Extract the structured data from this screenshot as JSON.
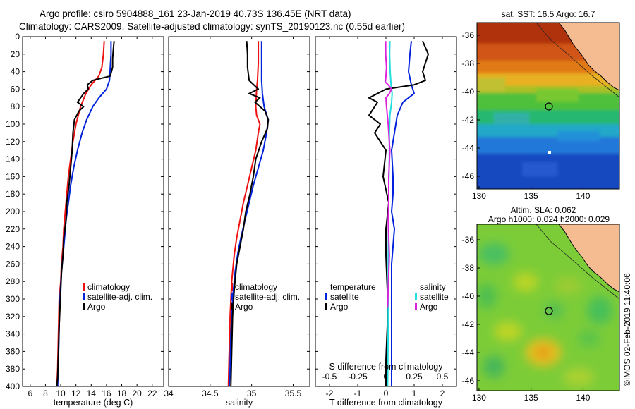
{
  "header": {
    "title_line1": "Argo profile: csiro 5904888_161 23-Jan-2019 40.73S 136.45E (NRT data)",
    "title_line2": "Climatology: CARS2009. Satellite-adjusted climatology: synTS_20190123.nc (0.55d earlier)"
  },
  "colors": {
    "climatology": "#ee1111",
    "satellite": "#0022dd",
    "argo": "#000000",
    "satellite_salinity": "#22dddd",
    "argo_salinity": "#dd22dd"
  },
  "chart_data": [
    {
      "type": "line",
      "name": "temperature",
      "xlabel": "temperature (deg C)",
      "ylabel": "pressure",
      "xlim": [
        5,
        23.5
      ],
      "ylim": [
        0,
        400
      ],
      "xticks": [
        6,
        8,
        10,
        12,
        14,
        16,
        18,
        20,
        22
      ],
      "yticks": [
        0,
        20,
        40,
        60,
        80,
        100,
        120,
        140,
        160,
        180,
        200,
        220,
        240,
        260,
        280,
        300,
        320,
        340,
        360,
        380,
        400
      ],
      "legend": [
        "climatology",
        "satellite-adj. clim.",
        "Argo"
      ],
      "series": [
        {
          "name": "climatology",
          "color": "#ee1111",
          "x": [
            15.7,
            15.6,
            15.4,
            15.0,
            14.0,
            13.3,
            12.6,
            12.0,
            11.6,
            11.3,
            11.0,
            10.8,
            10.6,
            10.4,
            10.3,
            10.1,
            10.0,
            9.8,
            9.7,
            9.6,
            9.5
          ],
          "y": [
            5,
            20,
            35,
            45,
            55,
            65,
            80,
            100,
            120,
            140,
            160,
            180,
            200,
            220,
            240,
            260,
            280,
            300,
            340,
            380,
            400
          ]
        },
        {
          "name": "satellite-adj. clim.",
          "color": "#0022dd",
          "x": [
            16.6,
            16.6,
            16.5,
            16.4,
            16.0,
            15.0,
            14.2,
            13.4,
            12.8,
            12.2,
            11.7,
            11.3,
            11.0,
            10.7,
            10.5,
            10.3,
            10.1,
            9.9,
            9.8,
            9.7,
            9.6
          ],
          "y": [
            5,
            20,
            35,
            50,
            60,
            70,
            80,
            95,
            110,
            130,
            150,
            170,
            190,
            210,
            230,
            250,
            270,
            300,
            330,
            370,
            400
          ]
        },
        {
          "name": "Argo",
          "color": "#000000",
          "x": [
            17.0,
            16.9,
            16.8,
            16.8,
            16.5,
            14.2,
            13.5,
            13.6,
            13.0,
            12.6,
            12.2,
            13.0,
            12.4,
            11.8,
            11.6,
            11.5,
            11.3,
            11.1,
            10.8,
            10.7,
            10.4,
            10.3,
            10.1,
            10.0,
            9.9,
            9.8,
            9.7,
            9.6,
            9.5
          ],
          "y": [
            5,
            15,
            25,
            35,
            45,
            50,
            55,
            60,
            65,
            70,
            75,
            80,
            85,
            95,
            110,
            130,
            150,
            170,
            190,
            210,
            230,
            250,
            270,
            290,
            310,
            330,
            360,
            390,
            400
          ]
        }
      ]
    },
    {
      "type": "line",
      "name": "salinity",
      "xlabel": "salinity",
      "xlim": [
        34,
        35.7
      ],
      "ylim": [
        0,
        400
      ],
      "xticks": [
        34,
        34.5,
        35,
        35.5
      ],
      "legend": [
        "climatology",
        "satellite-adj. clim.",
        "Argo"
      ],
      "series": [
        {
          "name": "climatology",
          "color": "#ee1111",
          "x": [
            35.08,
            35.08,
            35.07,
            35.06,
            35.05,
            35.06,
            35.1,
            35.08,
            35.05,
            35.0,
            34.95,
            34.9,
            34.86,
            34.82,
            34.79,
            34.76,
            34.74,
            34.73,
            34.72
          ],
          "y": [
            5,
            30,
            50,
            60,
            80,
            90,
            100,
            110,
            130,
            150,
            170,
            190,
            210,
            230,
            250,
            280,
            320,
            360,
            400
          ]
        },
        {
          "name": "satellite-adj. clim.",
          "color": "#0022dd",
          "x": [
            35.12,
            35.12,
            35.12,
            35.13,
            35.15,
            35.2,
            35.18,
            35.14,
            35.08,
            35.02,
            34.97,
            34.92,
            34.87,
            34.83,
            34.8,
            34.77,
            34.75,
            34.74,
            34.73
          ],
          "y": [
            5,
            30,
            50,
            65,
            80,
            95,
            110,
            130,
            150,
            170,
            190,
            210,
            230,
            250,
            270,
            300,
            340,
            380,
            400
          ]
        },
        {
          "name": "Argo",
          "color": "#000000",
          "x": [
            34.94,
            34.95,
            34.95,
            34.97,
            35.08,
            34.97,
            35.1,
            35.04,
            35.16,
            35.2,
            35.19,
            35.12,
            35.05,
            35.02,
            34.98,
            34.93,
            34.9,
            34.86,
            34.82,
            34.79,
            34.77,
            34.76,
            34.75
          ],
          "y": [
            5,
            20,
            35,
            50,
            60,
            65,
            70,
            75,
            85,
            95,
            105,
            120,
            140,
            160,
            180,
            200,
            220,
            240,
            260,
            290,
            320,
            360,
            400
          ]
        }
      ]
    },
    {
      "type": "line",
      "name": "difference from climatology",
      "xlabel": "T difference from climatology",
      "xlabel_secondary": "S difference from climatology",
      "xlim": [
        -2.5,
        2.5
      ],
      "ylim": [
        0,
        400
      ],
      "xticks": [
        -2,
        -1,
        0,
        1,
        2
      ],
      "xticks_secondary": [
        "-0.5",
        "-0.25",
        "0",
        "0.25",
        "0.5"
      ],
      "legend_temperature_title": "temperature",
      "legend_salinity_title": "salinity",
      "legend": [
        "satellite",
        "Argo"
      ],
      "series": [
        {
          "name": "temperature satellite",
          "color": "#0022dd",
          "x": [
            0.9,
            0.85,
            0.8,
            0.9,
            1.0,
            0.6,
            0.4,
            0.3,
            0.2,
            0.25,
            0.25,
            0.2,
            0.3,
            0.2,
            0.2,
            0.2,
            0.2
          ],
          "y": [
            5,
            20,
            40,
            55,
            65,
            75,
            90,
            110,
            130,
            160,
            180,
            200,
            220,
            260,
            300,
            350,
            400
          ]
        },
        {
          "name": "temperature Argo",
          "color": "#000000",
          "x": [
            1.3,
            1.5,
            1.3,
            1.4,
            1.0,
            0.0,
            -0.6,
            -0.3,
            -0.4,
            -0.6,
            -0.2,
            -0.4,
            0.0,
            -0.1,
            0.1,
            0.0,
            0.0,
            0.05,
            0.05,
            0.0,
            0.0
          ],
          "y": [
            5,
            20,
            40,
            50,
            55,
            60,
            70,
            75,
            80,
            90,
            100,
            110,
            130,
            160,
            190,
            220,
            250,
            290,
            330,
            370,
            400
          ]
        },
        {
          "name": "salinity satellite",
          "color": "#22dddd",
          "x": [
            0.14,
            0.13,
            0.15,
            0.18,
            0.22,
            0.2,
            0.14,
            0.12,
            0.12,
            0.1,
            0.1,
            0.08,
            0.08,
            0.06
          ],
          "y": [
            5,
            20,
            40,
            55,
            65,
            75,
            90,
            110,
            140,
            170,
            200,
            260,
            330,
            400
          ]
        },
        {
          "name": "salinity Argo",
          "color": "#dd22dd",
          "x": [
            -0.01,
            -0.01,
            0.02,
            0.0,
            -0.02,
            0.08,
            0.2,
            0.12,
            0.0,
            0.02,
            0.08,
            0.14,
            0.1,
            0.1,
            0.08,
            0.1,
            0.12,
            0.1,
            0.08,
            0.06
          ],
          "y": [
            5,
            20,
            35,
            45,
            52,
            55,
            60,
            65,
            70,
            80,
            100,
            130,
            160,
            190,
            210,
            230,
            250,
            270,
            290,
            310
          ]
        }
      ]
    }
  ],
  "maps": {
    "sst": {
      "title": "sat. SST: 16.5 Argo: 16.7",
      "xticks": [
        130,
        135,
        140
      ],
      "yticks": [
        -36,
        -38,
        -40,
        -42,
        -44,
        -46
      ]
    },
    "sla": {
      "title_line1": "Altim. SLA: 0.062",
      "title_line2": "Argo h1000: 0.024 h2000: 0.029",
      "xticks": [
        130,
        135,
        140
      ],
      "yticks": [
        -36,
        -38,
        -40,
        -42,
        -44,
        -46
      ]
    },
    "argo_position": {
      "lon": 136.45,
      "lat": -40.73
    }
  },
  "footer": {
    "credit": "©IMOS 02-Feb-2019 11:40:06"
  }
}
